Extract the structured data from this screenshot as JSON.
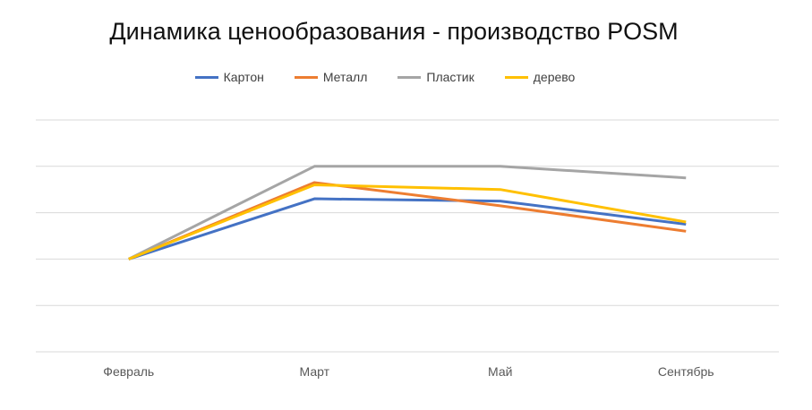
{
  "chart_data": {
    "type": "line",
    "title": "Динамика ценообразования - производство POSM",
    "categories": [
      "Февраль",
      "Март",
      "Май",
      "Сентябрь"
    ],
    "ylim": [
      0,
      5
    ],
    "grid": true,
    "legend_position": "top",
    "series": [
      {
        "name": "Картон",
        "color": "#4472C4",
        "values": [
          2.0,
          3.3,
          3.25,
          2.75
        ]
      },
      {
        "name": "Металл",
        "color": "#ED7D31",
        "values": [
          2.0,
          3.65,
          3.15,
          2.6
        ]
      },
      {
        "name": "Пластик",
        "color": "#A5A5A5",
        "values": [
          2.0,
          4.0,
          4.0,
          3.75
        ]
      },
      {
        "name": "дерево",
        "color": "#FFC000",
        "values": [
          2.0,
          3.6,
          3.5,
          2.8
        ]
      }
    ]
  }
}
